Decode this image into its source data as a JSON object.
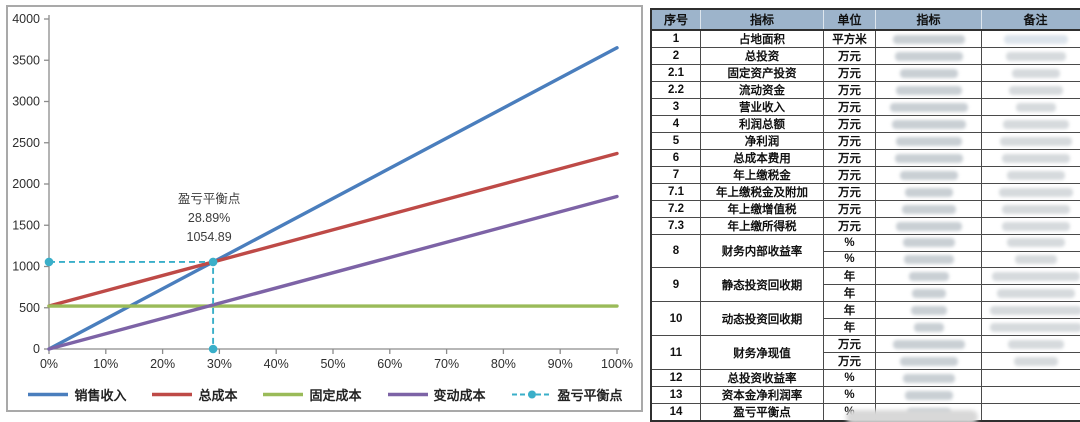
{
  "chart_data": {
    "type": "line",
    "title": "",
    "xlabel": "",
    "ylabel": "",
    "ylim": [
      0,
      4000
    ],
    "yticks": [
      0,
      500,
      1000,
      1500,
      2000,
      2500,
      3000,
      3500,
      4000
    ],
    "xticks": [
      0,
      10,
      20,
      30,
      40,
      50,
      60,
      70,
      80,
      90,
      100
    ],
    "xtick_labels": [
      "0%",
      "10%",
      "20%",
      "30%",
      "40%",
      "50%",
      "60%",
      "70%",
      "80%",
      "90%",
      "100%"
    ],
    "grid": false,
    "legend_position": "bottom",
    "series": [
      {
        "key": "sales-revenue",
        "name": "销售收入",
        "color": "#4a7ebd",
        "points": [
          [
            0,
            0
          ],
          [
            100,
            3651
          ]
        ]
      },
      {
        "key": "total-cost",
        "name": "总成本",
        "color": "#be4a47",
        "points": [
          [
            0,
            521
          ],
          [
            100,
            2370
          ]
        ]
      },
      {
        "key": "fixed-cost",
        "name": "固定成本",
        "color": "#9abb59",
        "points": [
          [
            0,
            521
          ],
          [
            100,
            521
          ]
        ]
      },
      {
        "key": "variable-cost",
        "name": "变动成本",
        "color": "#7d63a6",
        "points": [
          [
            0,
            0
          ],
          [
            100,
            1849
          ]
        ]
      }
    ],
    "break_even": {
      "key": "break-even",
      "name": "盈亏平衡点",
      "color": "#3aafc9",
      "x": 28.89,
      "y": 1054.89
    },
    "annotation": {
      "lines": [
        "盈亏平衡点",
        "28.89%",
        "1054.89"
      ]
    }
  },
  "table": {
    "header": [
      "序号",
      "指标",
      "单位",
      "指标",
      "备注"
    ],
    "rows": [
      {
        "no": "1",
        "name": "占地面积",
        "units": [
          "平方米"
        ],
        "vb": [
          72
        ],
        "rb": [
          64
        ],
        "remark_tint": "#dce4ec"
      },
      {
        "no": "2",
        "name": "总投资",
        "units": [
          "万元"
        ],
        "vb": [
          68
        ],
        "rb": [
          60
        ]
      },
      {
        "no": "2.1",
        "name": "固定资产投资",
        "units": [
          "万元"
        ],
        "vb": [
          58
        ],
        "rb": [
          48
        ]
      },
      {
        "no": "2.2",
        "name": "流动资金",
        "units": [
          "万元"
        ],
        "vb": [
          66
        ],
        "rb": [
          54
        ]
      },
      {
        "no": "3",
        "name": "营业收入",
        "units": [
          "万元"
        ],
        "vb": [
          78
        ],
        "rb": [
          40
        ]
      },
      {
        "no": "4",
        "name": "利润总额",
        "units": [
          "万元"
        ],
        "vb": [
          74
        ],
        "rb": [
          66
        ]
      },
      {
        "no": "5",
        "name": "净利润",
        "units": [
          "万元"
        ],
        "vb": [
          66
        ],
        "rb": [
          72
        ]
      },
      {
        "no": "6",
        "name": "总成本费用",
        "units": [
          "万元"
        ],
        "vb": [
          68
        ],
        "rb": [
          68
        ]
      },
      {
        "no": "7",
        "name": "年上缴税金",
        "units": [
          "万元"
        ],
        "vb": [
          58
        ],
        "rb": [
          58
        ]
      },
      {
        "no": "7.1",
        "name": "年上缴税金及附加",
        "units": [
          "万元"
        ],
        "vb": [
          48
        ],
        "rb": [
          74
        ]
      },
      {
        "no": "7.2",
        "name": "年上缴增值税",
        "units": [
          "万元"
        ],
        "vb": [
          54
        ],
        "rb": [
          68
        ]
      },
      {
        "no": "7.3",
        "name": "年上缴所得税",
        "units": [
          "万元"
        ],
        "vb": [
          66
        ],
        "rb": [
          68
        ]
      },
      {
        "no": "8",
        "name": "财务内部收益率",
        "units": [
          "%",
          "%"
        ],
        "vb": [
          52,
          50
        ],
        "rb": [
          58,
          42
        ]
      },
      {
        "no": "9",
        "name": "静态投资回收期",
        "units": [
          "年",
          "年"
        ],
        "vb": [
          40,
          34
        ],
        "rb": [
          88,
          78
        ]
      },
      {
        "no": "10",
        "name": "动态投资回收期",
        "units": [
          "年",
          "年"
        ],
        "vb": [
          36,
          30
        ],
        "rb": [
          92,
          92
        ]
      },
      {
        "no": "11",
        "name": "财务净现值",
        "units": [
          "万元",
          "万元"
        ],
        "vb": [
          72,
          58
        ],
        "rb": [
          56,
          44
        ]
      },
      {
        "no": "12",
        "name": "总投资收益率",
        "units": [
          "%"
        ],
        "vb": [
          52
        ],
        "rb": [
          0
        ]
      },
      {
        "no": "13",
        "name": "资本金净利润率",
        "units": [
          "%"
        ],
        "vb": [
          48
        ],
        "rb": [
          0
        ]
      },
      {
        "no": "14",
        "name": "盈亏平衡点",
        "units": [
          "%"
        ],
        "vb": [
          44
        ],
        "rb": [
          0
        ]
      }
    ]
  }
}
